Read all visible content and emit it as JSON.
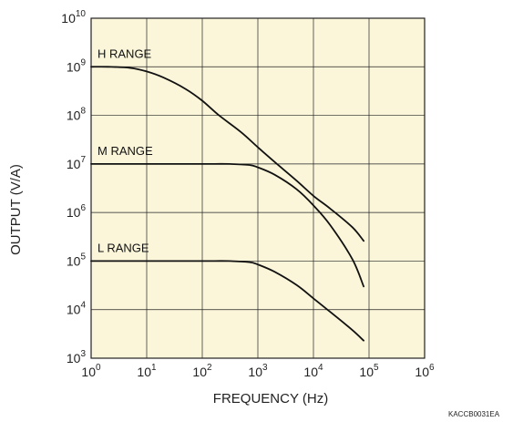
{
  "chart_data": {
    "type": "line",
    "title": "",
    "xlabel": "FREQUENCY (Hz)",
    "ylabel": "OUTPUT (V/A)",
    "x_scale": "log",
    "y_scale": "log",
    "xlim": [
      1,
      1000000
    ],
    "ylim": [
      1000,
      10000000000
    ],
    "grid": true,
    "legend": "none",
    "x_ticks": [
      {
        "base": "10",
        "exp": "0"
      },
      {
        "base": "10",
        "exp": "1"
      },
      {
        "base": "10",
        "exp": "2"
      },
      {
        "base": "10",
        "exp": "3"
      },
      {
        "base": "10",
        "exp": "4"
      },
      {
        "base": "10",
        "exp": "5"
      },
      {
        "base": "10",
        "exp": "6"
      }
    ],
    "y_ticks": [
      {
        "base": "10",
        "exp": "3"
      },
      {
        "base": "10",
        "exp": "4"
      },
      {
        "base": "10",
        "exp": "5"
      },
      {
        "base": "10",
        "exp": "6"
      },
      {
        "base": "10",
        "exp": "7"
      },
      {
        "base": "10",
        "exp": "8"
      },
      {
        "base": "10",
        "exp": "9"
      },
      {
        "base": "10",
        "exp": "10"
      }
    ],
    "series": [
      {
        "name": "H RANGE",
        "x": [
          1,
          2,
          5,
          10,
          20,
          50,
          100,
          200,
          500,
          1000,
          2000,
          5000,
          10000,
          20000,
          50000,
          80000
        ],
        "y": [
          1000000000,
          1000000000,
          950000000,
          800000000,
          600000000,
          350000000,
          200000000,
          100000000,
          45000000,
          22000000,
          11000000,
          4500000,
          2200000,
          1200000,
          500000,
          260000
        ]
      },
      {
        "name": "M RANGE",
        "x": [
          1,
          10,
          100,
          300,
          700,
          1000,
          2000,
          5000,
          10000,
          20000,
          50000,
          80000
        ],
        "y": [
          10000000,
          10000000,
          10000000,
          10000000,
          9500000,
          8500000,
          6000000,
          3000000,
          1400000,
          550000,
          110000,
          30000
        ]
      },
      {
        "name": "L RANGE",
        "x": [
          1,
          10,
          100,
          300,
          700,
          1000,
          2000,
          5000,
          10000,
          20000,
          50000,
          80000
        ],
        "y": [
          100000,
          100000,
          100000,
          100000,
          95000,
          85000,
          60000,
          32000,
          17000,
          9000,
          3800,
          2300
        ]
      }
    ],
    "colors": {
      "plot_background": "#fbf6da",
      "grid": "#222222",
      "line": "#111111"
    }
  },
  "code": "KACCB0031EA"
}
